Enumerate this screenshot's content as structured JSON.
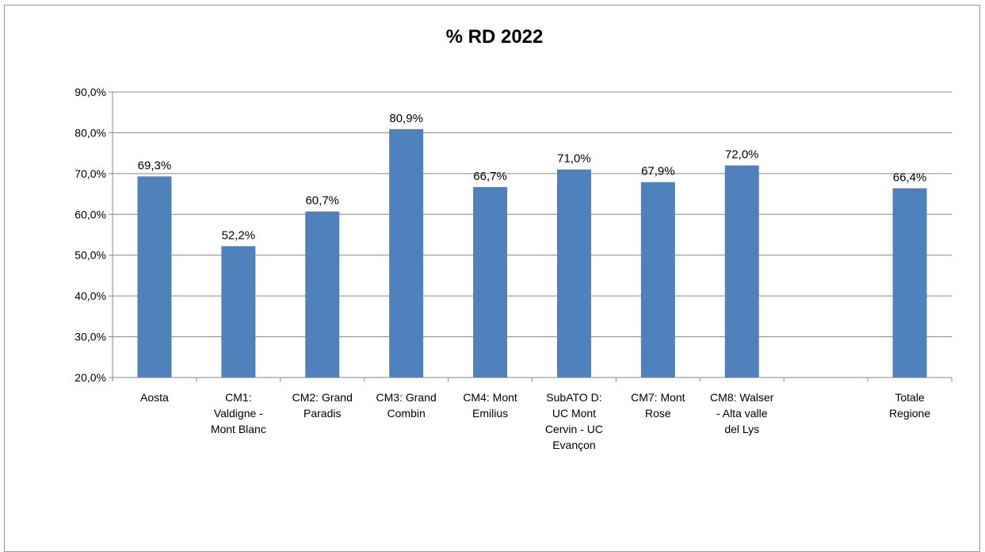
{
  "chart_data": {
    "type": "bar",
    "title": "% RD 2022",
    "xlabel": "",
    "ylabel": "",
    "ylim": [
      20,
      90
    ],
    "yticks": [
      "20,0%",
      "30,0%",
      "40,0%",
      "50,0%",
      "60,0%",
      "70,0%",
      "80,0%",
      "90,0%"
    ],
    "categories": [
      [
        "Aosta"
      ],
      [
        "CM1:",
        "Valdigne -",
        "Mont Blanc"
      ],
      [
        "CM2: Grand",
        "Paradis"
      ],
      [
        "CM3: Grand",
        "Combin"
      ],
      [
        "CM4: Mont",
        "Emilius"
      ],
      [
        "SubATO D:",
        "UC Mont",
        "Cervin - UC",
        "Evançon"
      ],
      [
        "CM7: Mont",
        "Rose"
      ],
      [
        "CM8: Walser",
        "- Alta valle",
        "del Lys"
      ],
      [
        ""
      ],
      [
        "Totale",
        "Regione"
      ]
    ],
    "values": [
      69.3,
      52.2,
      60.7,
      80.9,
      66.7,
      71.0,
      67.9,
      72.0,
      null,
      66.4
    ],
    "data_labels": [
      "69,3%",
      "52,2%",
      "60,7%",
      "80,9%",
      "66,7%",
      "71,0%",
      "67,9%",
      "72,0%",
      "",
      "66,4%"
    ],
    "grid": true,
    "legend": "none",
    "bar_color": "#4f81bd",
    "grid_color": "#868686"
  }
}
